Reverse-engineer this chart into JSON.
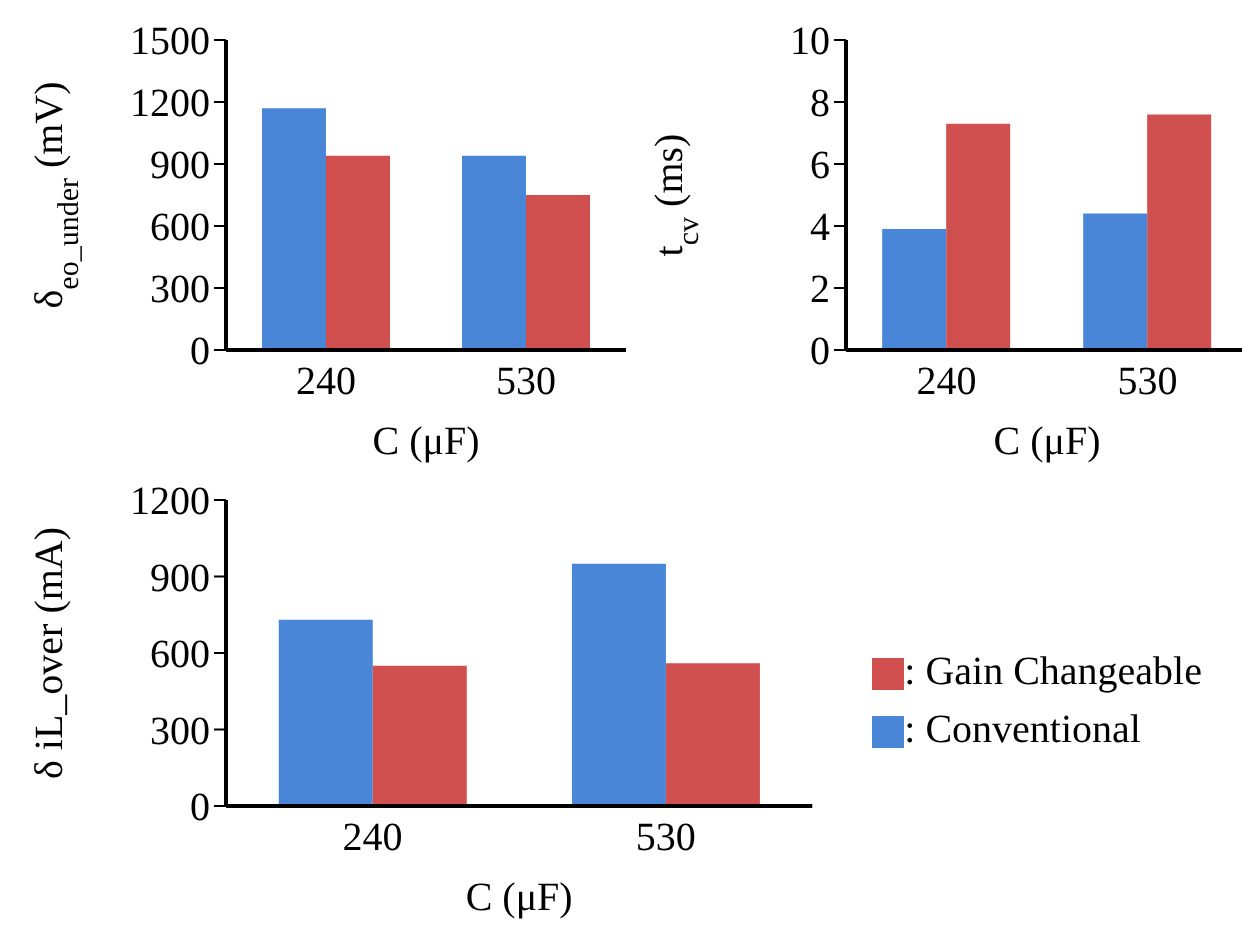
{
  "chart_data": [
    {
      "type": "bar",
      "categories": [
        "240",
        "530"
      ],
      "xlabel": "C (μF)",
      "ylabel": "δ$_{eo_under}$ (mV)",
      "ylim": [
        0,
        1500
      ],
      "yticks": [
        0,
        300,
        600,
        900,
        1200,
        1500
      ],
      "series": [
        {
          "color": "#4a86d8",
          "values": [
            1170,
            940
          ]
        },
        {
          "color": "#d05050",
          "values": [
            940,
            750
          ]
        }
      ]
    },
    {
      "type": "bar",
      "categories": [
        "240",
        "530"
      ],
      "xlabel": "C (μF)",
      "ylabel": "t$_{cv}$ (ms)",
      "ylim": [
        0,
        10
      ],
      "yticks": [
        0,
        2,
        4,
        6,
        8,
        10
      ],
      "series": [
        {
          "color": "#4a86d8",
          "values": [
            3.9,
            4.4
          ]
        },
        {
          "color": "#d05050",
          "values": [
            7.3,
            7.6
          ]
        }
      ]
    },
    {
      "type": "bar",
      "categories": [
        "240",
        "530"
      ],
      "xlabel": "C (μF)",
      "ylabel": "δ iL_over (mA)",
      "ylim": [
        0,
        1200
      ],
      "yticks": [
        0,
        300,
        600,
        900,
        1200
      ],
      "legend": "right",
      "series": [
        {
          "name": ": Conventional",
          "color": "#4a86d8",
          "values": [
            730,
            950
          ]
        },
        {
          "name": ": Gain Changeable",
          "color": "#d05050",
          "values": [
            550,
            560
          ]
        }
      ]
    }
  ]
}
